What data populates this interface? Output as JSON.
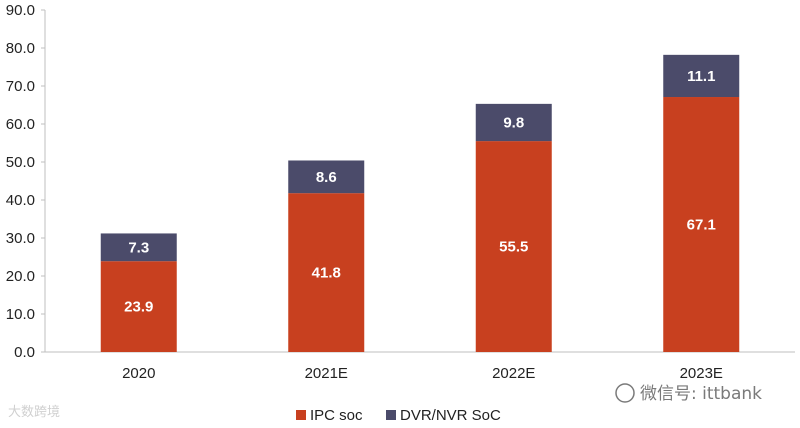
{
  "chart_data": {
    "type": "bar",
    "stacked": true,
    "categories": [
      "2020",
      "2021E",
      "2022E",
      "2023E"
    ],
    "series": [
      {
        "name": "IPC soc",
        "values": [
          23.9,
          41.8,
          55.5,
          67.1
        ],
        "color": "#c8401f"
      },
      {
        "name": "DVR/NVR SoC",
        "values": [
          7.3,
          8.6,
          9.8,
          11.1
        ],
        "color": "#4b4b6a"
      }
    ],
    "ylim": [
      0,
      90
    ],
    "yticks": [
      "0.0",
      "10.0",
      "20.0",
      "30.0",
      "40.0",
      "50.0",
      "60.0",
      "70.0",
      "80.0",
      "90.0"
    ],
    "grid": false,
    "legend_position": "bottom-center"
  },
  "watermarks": {
    "bottom_right": "微信号: ittbank",
    "bottom_left": "大数跨境"
  }
}
